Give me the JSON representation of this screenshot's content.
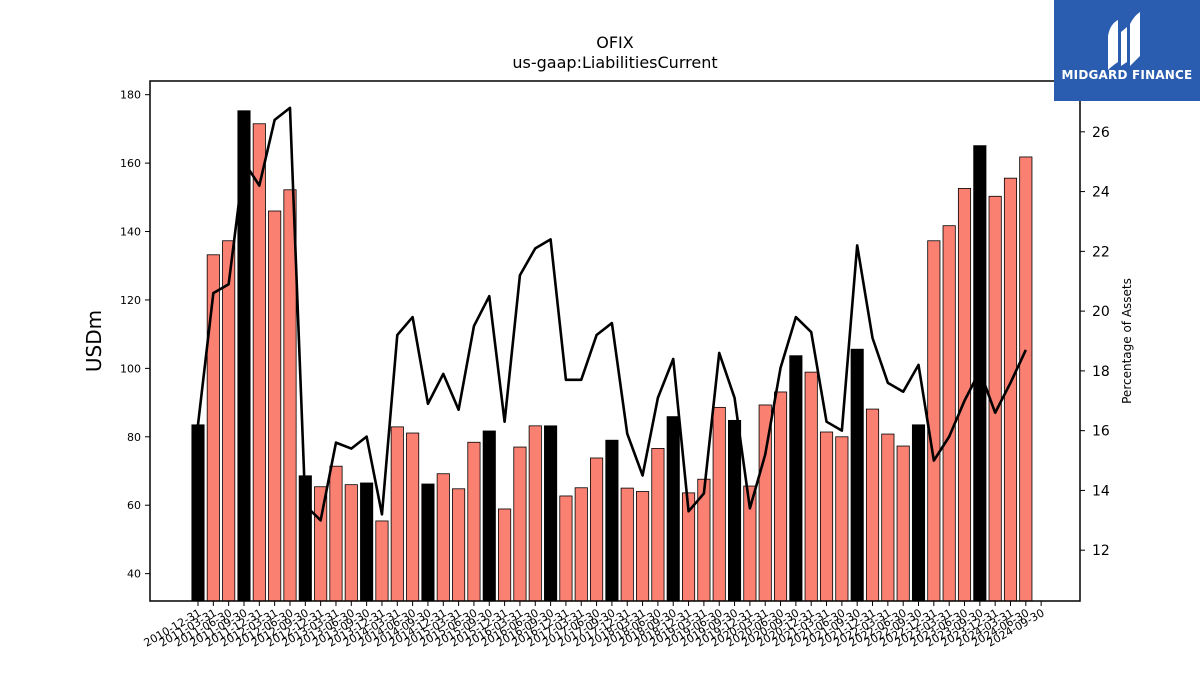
{
  "chart_data": {
    "type": "bar",
    "title": "OFIX",
    "subtitle": "us-gaap:LiabilitiesCurrent",
    "ylabel": "USDm",
    "y2label": "Percentage of Assets",
    "ylim": [
      32,
      184
    ],
    "y2lim": [
      10.3,
      27.7
    ],
    "yticks": [
      40,
      60,
      80,
      100,
      120,
      140,
      160,
      180
    ],
    "y2ticks": [
      12,
      14,
      16,
      18,
      20,
      22,
      24,
      26
    ],
    "grid": false,
    "legend": "none",
    "colors": {
      "annual_bar": "#000000",
      "quarter_bar": "#fa8072",
      "line": "#000000"
    },
    "categories": [
      "2010-12-31",
      "2011-03-31",
      "2011-06-30",
      "2011-09-30",
      "2011-12-31",
      "2012-03-31",
      "2012-06-30",
      "2012-09-30",
      "2012-12-31",
      "2013-03-31",
      "2013-06-30",
      "2013-09-30",
      "2013-12-31",
      "2014-03-31",
      "2014-06-30",
      "2014-09-30",
      "2014-12-31",
      "2015-03-31",
      "2015-06-30",
      "2015-09-30",
      "2015-12-31",
      "2016-03-31",
      "2016-06-30",
      "2016-09-30",
      "2016-12-31",
      "2017-03-31",
      "2017-06-30",
      "2017-09-30",
      "2017-12-31",
      "2018-03-31",
      "2018-06-30",
      "2018-09-30",
      "2018-12-31",
      "2019-03-31",
      "2019-06-30",
      "2019-09-30",
      "2019-12-31",
      "2020-03-31",
      "2020-06-30",
      "2020-09-30",
      "2020-12-31",
      "2021-03-31",
      "2021-06-30",
      "2021-09-30",
      "2021-12-31",
      "2022-03-31",
      "2022-06-30",
      "2022-09-30",
      "2022-12-31",
      "2023-03-31",
      "2023-06-30",
      "2023-09-30",
      "2023-12-31",
      "2024-03-31",
      "2024-06-30",
      "2024-09-30"
    ],
    "bar_types": [
      "A",
      "Q",
      "Q",
      "A",
      "Q",
      "Q",
      "Q",
      "A",
      "Q",
      "Q",
      "Q",
      "A",
      "Q",
      "Q",
      "Q",
      "A",
      "Q",
      "Q",
      "Q",
      "A",
      "Q",
      "Q",
      "Q",
      "A",
      "Q",
      "Q",
      "Q",
      "A",
      "Q",
      "Q",
      "Q",
      "A",
      "Q",
      "Q",
      "Q",
      "A",
      "Q",
      "Q",
      "Q",
      "A",
      "Q",
      "Q",
      "Q",
      "A",
      "Q",
      "Q",
      "Q",
      "A",
      "Q",
      "Q",
      "Q",
      "A",
      "Q",
      "Q",
      "Q",
      "A"
    ],
    "series": [
      {
        "values": [
          83.5,
          133.2,
          137.3,
          175.3,
          171.5,
          146.0,
          152.2,
          68.6,
          65.4,
          71.4,
          66.0,
          66.5,
          55.4,
          82.9,
          81.1,
          66.2,
          69.2,
          64.8,
          78.4,
          81.7,
          58.9,
          77.0,
          83.2,
          83.2,
          62.7,
          65.1,
          73.8,
          79.0,
          65.0,
          64.0,
          76.6,
          85.9,
          63.6,
          67.6,
          88.6,
          84.8,
          65.6,
          89.3,
          93.1,
          103.7,
          98.9,
          81.4,
          80.0,
          105.6,
          88.1,
          80.8,
          77.3,
          83.5,
          137.3,
          141.7,
          152.6,
          165.1,
          150.3,
          155.6,
          161.8,
          null
        ]
      },
      {
        "axis": "right",
        "values": [
          16.2,
          20.6,
          20.9,
          25.0,
          24.2,
          26.4,
          26.8,
          13.5,
          13.0,
          15.6,
          15.4,
          15.8,
          13.2,
          19.2,
          19.8,
          16.9,
          17.9,
          16.7,
          19.5,
          20.5,
          16.3,
          21.2,
          22.1,
          22.4,
          17.7,
          17.7,
          19.2,
          19.6,
          15.9,
          14.5,
          17.1,
          18.4,
          13.3,
          13.9,
          18.6,
          17.1,
          13.4,
          15.2,
          18.1,
          19.8,
          19.3,
          16.3,
          16.0,
          22.2,
          19.1,
          17.6,
          17.3,
          18.2,
          15.0,
          15.8,
          17.0,
          18.0,
          16.6,
          17.6,
          18.7,
          null
        ]
      }
    ]
  },
  "logo": {
    "text": "MIDGARD FINANCE"
  }
}
